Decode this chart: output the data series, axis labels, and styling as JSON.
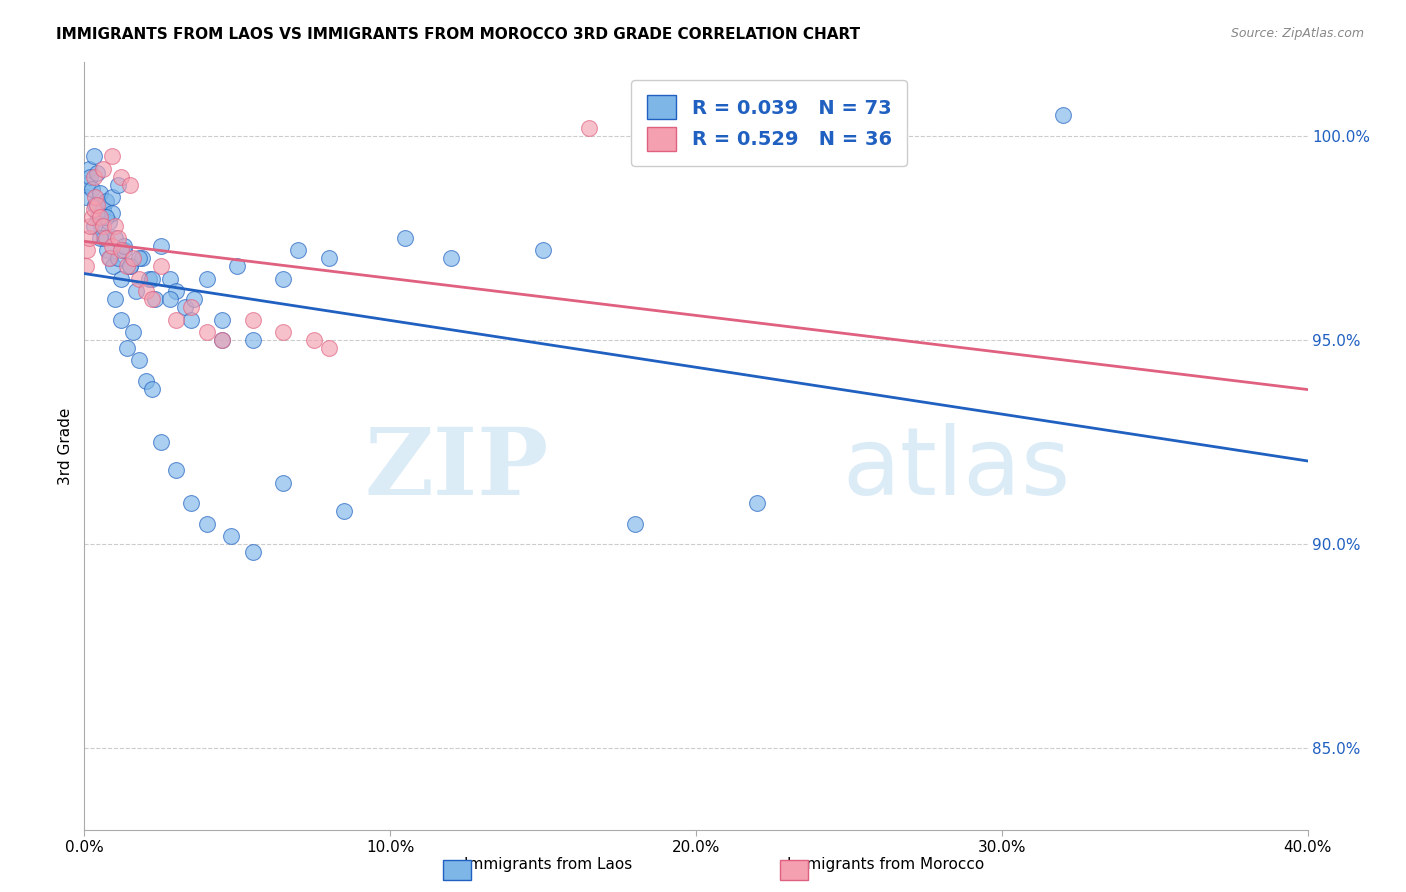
{
  "title": "IMMIGRANTS FROM LAOS VS IMMIGRANTS FROM MOROCCO 3RD GRADE CORRELATION CHART",
  "source": "Source: ZipAtlas.com",
  "ylabel": "3rd Grade",
  "x_tick_values": [
    0.0,
    10.0,
    20.0,
    30.0,
    40.0
  ],
  "y_tick_values": [
    85.0,
    90.0,
    95.0,
    100.0
  ],
  "xlim": [
    0.0,
    40.0
  ],
  "ylim": [
    83.0,
    101.8
  ],
  "legend_laos": "Immigrants from Laos",
  "legend_morocco": "Immigrants from Morocco",
  "R_laos": "0.039",
  "N_laos": "73",
  "R_morocco": "0.529",
  "N_morocco": "36",
  "color_laos": "#7eb6e8",
  "color_morocco": "#f4a0b0",
  "line_color_laos": "#2060c0",
  "line_color_morocco": "#e06080",
  "watermark_zip": "ZIP",
  "watermark_atlas": "atlas",
  "laos_x": [
    0.05,
    0.1,
    0.15,
    0.2,
    0.25,
    0.3,
    0.35,
    0.4,
    0.45,
    0.5,
    0.55,
    0.6,
    0.65,
    0.7,
    0.75,
    0.8,
    0.85,
    0.9,
    0.95,
    1.0,
    1.1,
    1.2,
    1.3,
    1.5,
    1.7,
    1.9,
    2.1,
    2.3,
    2.5,
    2.8,
    3.0,
    3.3,
    3.6,
    4.0,
    4.5,
    5.0,
    5.5,
    6.5,
    7.0,
    8.0,
    1.0,
    1.2,
    1.4,
    1.6,
    1.8,
    2.0,
    2.2,
    2.5,
    3.0,
    3.5,
    4.0,
    4.8,
    5.5,
    6.5,
    8.5,
    10.5,
    12.0,
    15.0,
    18.0,
    22.0,
    0.3,
    0.5,
    0.7,
    0.9,
    1.1,
    1.3,
    1.5,
    1.8,
    2.2,
    2.8,
    3.5,
    4.5,
    32.0
  ],
  "laos_y": [
    98.5,
    98.8,
    99.2,
    99.0,
    98.7,
    99.5,
    98.3,
    99.1,
    98.0,
    98.6,
    97.8,
    98.2,
    97.5,
    98.4,
    97.2,
    97.9,
    97.0,
    98.1,
    96.8,
    97.5,
    97.0,
    96.5,
    97.2,
    96.8,
    96.2,
    97.0,
    96.5,
    96.0,
    97.3,
    96.5,
    96.2,
    95.8,
    96.0,
    96.5,
    95.5,
    96.8,
    95.0,
    96.5,
    97.2,
    97.0,
    96.0,
    95.5,
    94.8,
    95.2,
    94.5,
    94.0,
    93.8,
    92.5,
    91.8,
    91.0,
    90.5,
    90.2,
    89.8,
    91.5,
    90.8,
    97.5,
    97.0,
    97.2,
    90.5,
    91.0,
    97.8,
    97.5,
    98.0,
    98.5,
    98.8,
    97.3,
    96.8,
    97.0,
    96.5,
    96.0,
    95.5,
    95.0,
    100.5
  ],
  "morocco_x": [
    0.05,
    0.1,
    0.15,
    0.2,
    0.25,
    0.3,
    0.35,
    0.4,
    0.5,
    0.6,
    0.7,
    0.8,
    0.9,
    1.0,
    1.1,
    1.2,
    1.4,
    1.6,
    1.8,
    2.0,
    2.2,
    2.5,
    3.0,
    3.5,
    4.0,
    4.5,
    5.5,
    6.5,
    7.5,
    8.0,
    0.3,
    0.6,
    0.9,
    1.2,
    1.5,
    16.5
  ],
  "morocco_y": [
    96.8,
    97.2,
    97.5,
    97.8,
    98.0,
    98.2,
    98.5,
    98.3,
    98.0,
    97.8,
    97.5,
    97.0,
    97.3,
    97.8,
    97.5,
    97.2,
    96.8,
    97.0,
    96.5,
    96.2,
    96.0,
    96.8,
    95.5,
    95.8,
    95.2,
    95.0,
    95.5,
    95.2,
    95.0,
    94.8,
    99.0,
    99.2,
    99.5,
    99.0,
    98.8,
    100.2
  ]
}
